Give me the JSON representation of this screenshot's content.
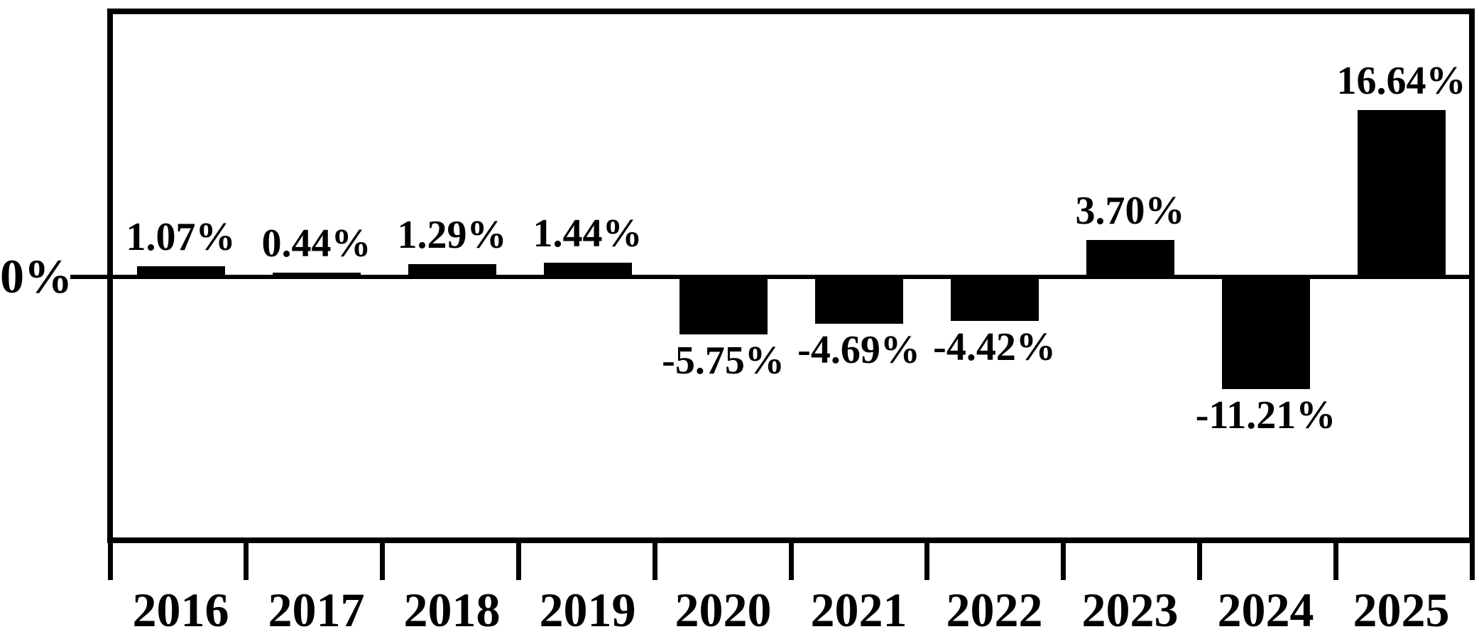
{
  "chart_data": {
    "type": "bar",
    "categories": [
      "2016",
      "2017",
      "2018",
      "2019",
      "2020",
      "2021",
      "2022",
      "2023",
      "2024",
      "2025"
    ],
    "values": [
      1.07,
      0.44,
      1.29,
      1.44,
      -5.75,
      -4.69,
      -4.42,
      3.7,
      -11.21,
      16.64
    ],
    "value_labels": [
      "1.07%",
      "0.44%",
      "1.29%",
      "1.44%",
      "-5.75%",
      "-4.69%",
      "-4.42%",
      "3.70%",
      "-11.21%",
      "16.64%"
    ],
    "y_axis": {
      "zero_label": "0%",
      "ylim": [
        -26.5,
        26.5
      ],
      "grid": false
    },
    "bar_color": "#000000",
    "background_color": "#ffffff",
    "title": "",
    "xlabel": "",
    "ylabel": ""
  }
}
